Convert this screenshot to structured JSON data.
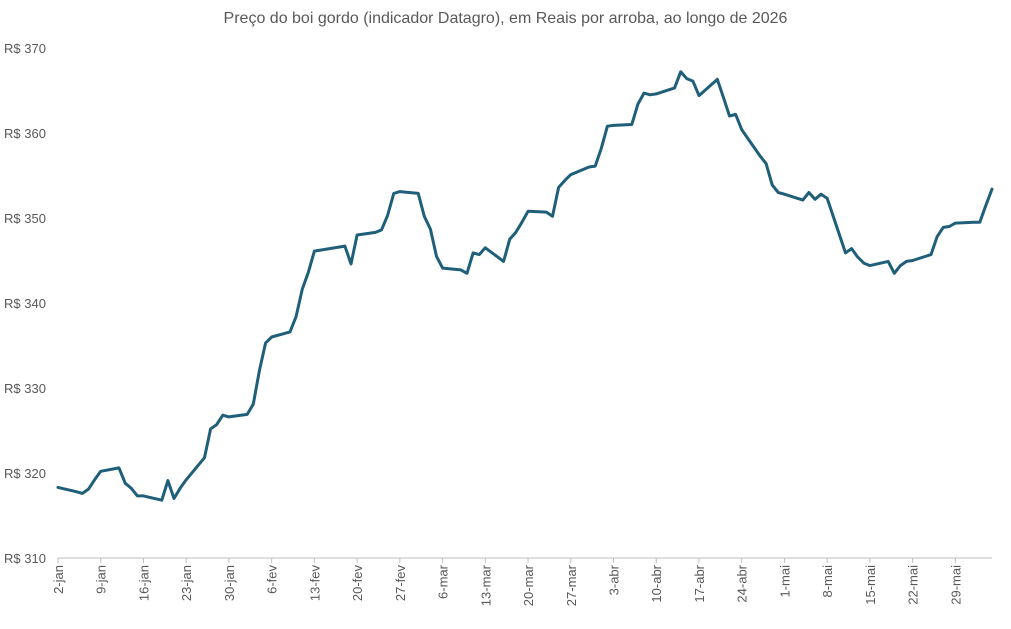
{
  "chart_data": {
    "type": "line",
    "title": "Preço do boi gordo (indicador Datagro), em Reais por arroba, ao longo de 2026",
    "xlabel": "",
    "ylabel": "",
    "ylim": [
      310,
      370
    ],
    "y_ticks": [
      "R$ 310",
      "R$ 320",
      "R$ 330",
      "R$ 340",
      "R$ 350",
      "R$ 360",
      "R$ 370"
    ],
    "y_tick_values": [
      310,
      320,
      330,
      340,
      350,
      360,
      370
    ],
    "x_tick_labels": [
      "2-jan",
      "9-jan",
      "16-jan",
      "23-jan",
      "30-jan",
      "6-fev",
      "13-fev",
      "20-fev",
      "27-fev",
      "6-mar",
      "13-mar",
      "20-mar",
      "27-mar",
      "3-abr",
      "10-abr",
      "17-abr",
      "24-abr",
      "1-mai",
      "8-mai",
      "15-mai",
      "22-mai",
      "29-mai"
    ],
    "x_tick_positions": [
      0,
      7,
      14,
      21,
      28,
      35,
      42,
      49,
      56,
      63,
      70,
      77,
      84,
      91,
      98,
      105,
      112,
      119,
      126,
      133,
      140,
      147
    ],
    "x_range": [
      0,
      153
    ],
    "grid": false,
    "line_color": "#1f5f7a",
    "series": [
      {
        "x": [
          0,
          3,
          4,
          5,
          6,
          7,
          10,
          11,
          12,
          13,
          14,
          17,
          18,
          19,
          20,
          21,
          24,
          25,
          26,
          27,
          28,
          31,
          32,
          33,
          34,
          35,
          38,
          39,
          40,
          41,
          42,
          47,
          48,
          49,
          52,
          53,
          54,
          55,
          56,
          59,
          60,
          61,
          62,
          63,
          66,
          67,
          68,
          69,
          70,
          73,
          74,
          75,
          76,
          77,
          80,
          81,
          82,
          83,
          84,
          87,
          88,
          89,
          90,
          91,
          94,
          95,
          96,
          97,
          98,
          101,
          102,
          103,
          104,
          105,
          108,
          109,
          110,
          111,
          112,
          115,
          116,
          117,
          118,
          119,
          122,
          123,
          124,
          125,
          126,
          129,
          130,
          131,
          132,
          133,
          136,
          137,
          138,
          139,
          140,
          143,
          144,
          145,
          146,
          147,
          150,
          151,
          152,
          153
        ],
        "values": [
          318.3,
          317.8,
          317.6,
          318.1,
          319.2,
          320.2,
          320.6,
          318.8,
          318.2,
          317.3,
          317.3,
          316.8,
          319.1,
          317.0,
          318.2,
          319.2,
          321.8,
          325.2,
          325.7,
          326.8,
          326.6,
          326.9,
          328.1,
          332.1,
          335.3,
          336.0,
          336.6,
          338.4,
          341.6,
          343.6,
          346.1,
          346.7,
          344.6,
          348.0,
          348.3,
          348.6,
          350.3,
          352.9,
          353.1,
          352.9,
          350.2,
          348.7,
          345.5,
          344.1,
          343.9,
          343.5,
          345.9,
          345.7,
          346.5,
          344.9,
          347.5,
          348.3,
          349.5,
          350.8,
          350.7,
          350.2,
          353.6,
          354.4,
          355.1,
          356.0,
          356.1,
          358.2,
          360.8,
          360.9,
          361.0,
          363.4,
          364.7,
          364.5,
          364.6,
          365.3,
          367.2,
          366.4,
          366.1,
          364.4,
          366.3,
          364.2,
          362.0,
          362.2,
          360.4,
          357.3,
          356.4,
          353.9,
          353.0,
          352.8,
          352.1,
          353.0,
          352.2,
          352.8,
          352.3,
          345.9,
          346.4,
          345.4,
          344.7,
          344.4,
          344.9,
          343.5,
          344.4,
          344.9,
          345.0,
          345.7,
          347.8,
          348.9,
          349.0,
          349.4,
          349.5,
          349.5,
          351.5,
          353.4
        ]
      }
    ]
  }
}
